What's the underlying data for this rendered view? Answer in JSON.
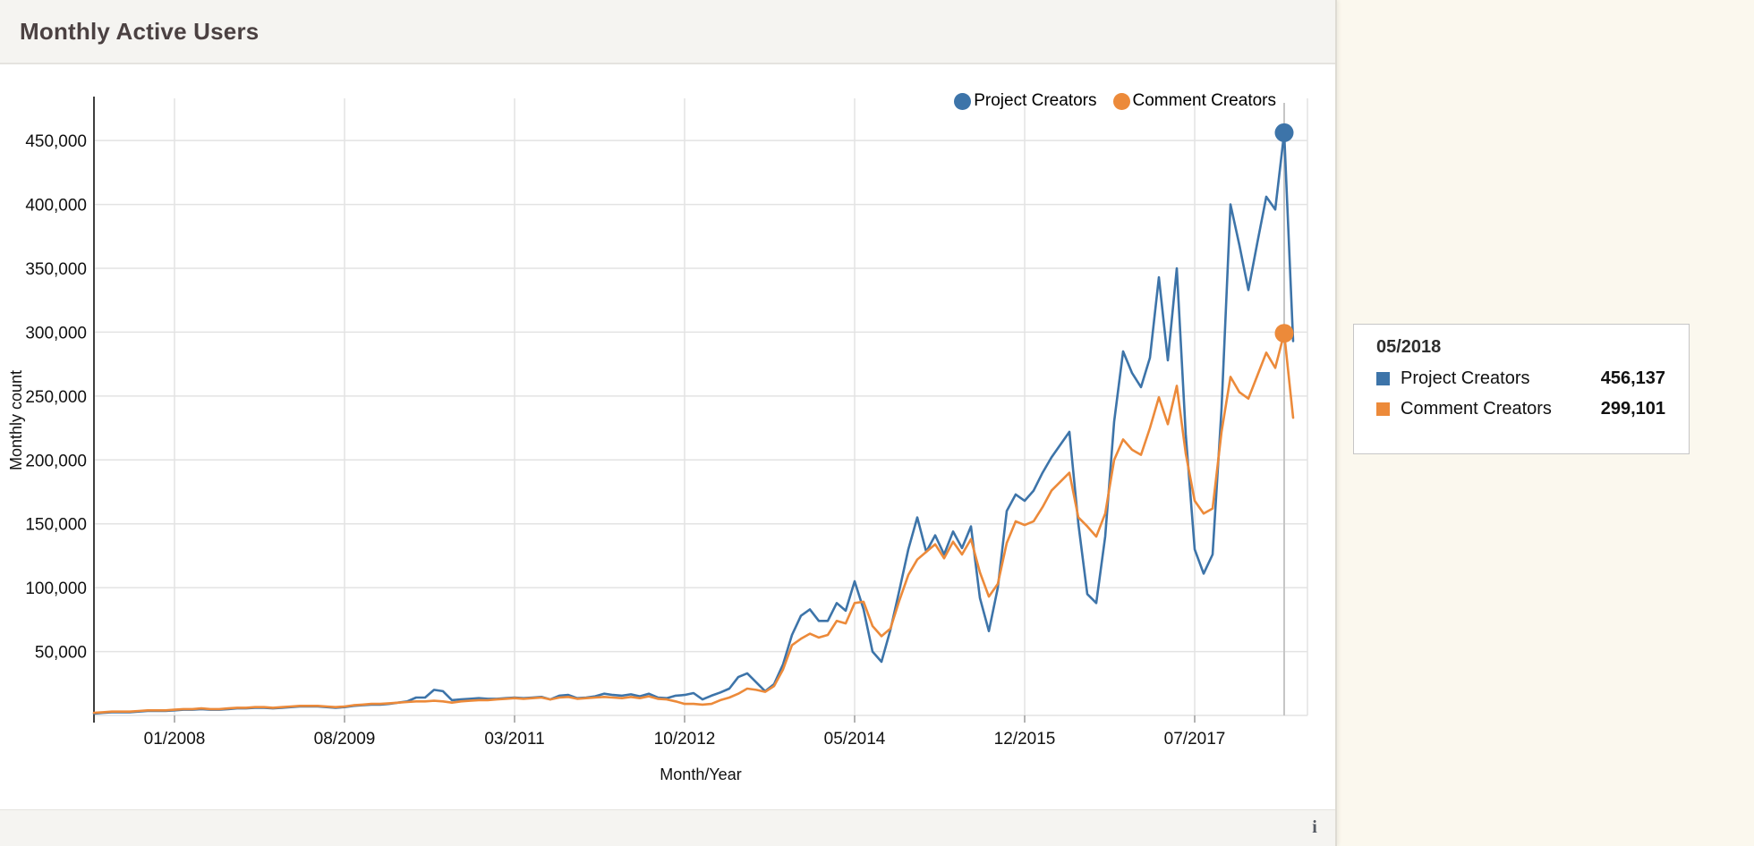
{
  "header": {
    "title": "Monthly Active Users"
  },
  "legend": {
    "items": [
      {
        "label": "Project Creators",
        "color": "#3d74a9"
      },
      {
        "label": "Comment Creators",
        "color": "#ec8a3a"
      }
    ]
  },
  "tooltip": {
    "date": "05/2018",
    "rows": [
      {
        "label": "Project Creators",
        "value": "456,137",
        "color": "#3d74a9"
      },
      {
        "label": "Comment Creators",
        "value": "299,101",
        "color": "#ec8a3a"
      }
    ]
  },
  "footer": {
    "info_icon": "i"
  },
  "chart_data": {
    "type": "line",
    "title": "Monthly Active Users",
    "xlabel": "Month/Year",
    "ylabel": "Monthly count",
    "ylim": [
      0,
      460000
    ],
    "grid": true,
    "legend_position": "top-right",
    "y_ticks": [
      {
        "value": 50000,
        "label": "50,000"
      },
      {
        "value": 100000,
        "label": "100,000"
      },
      {
        "value": 150000,
        "label": "150,000"
      },
      {
        "value": 200000,
        "label": "200,000"
      },
      {
        "value": 250000,
        "label": "250,000"
      },
      {
        "value": 300000,
        "label": "300,000"
      },
      {
        "value": 350000,
        "label": "350,000"
      },
      {
        "value": 400000,
        "label": "400,000"
      },
      {
        "value": 450000,
        "label": "450,000"
      }
    ],
    "x_tick_labels": [
      "01/2008",
      "08/2009",
      "03/2011",
      "10/2012",
      "05/2014",
      "12/2015",
      "07/2017"
    ],
    "highlight": {
      "month": "05/2018",
      "values": {
        "Project Creators": 456137,
        "Comment Creators": 299101
      },
      "line_color": "#c6c6c6"
    },
    "months": [
      "04/2007",
      "05/2007",
      "06/2007",
      "07/2007",
      "08/2007",
      "09/2007",
      "10/2007",
      "11/2007",
      "12/2007",
      "01/2008",
      "02/2008",
      "03/2008",
      "04/2008",
      "05/2008",
      "06/2008",
      "07/2008",
      "08/2008",
      "09/2008",
      "10/2008",
      "11/2008",
      "12/2008",
      "01/2009",
      "02/2009",
      "03/2009",
      "04/2009",
      "05/2009",
      "06/2009",
      "07/2009",
      "08/2009",
      "09/2009",
      "10/2009",
      "11/2009",
      "12/2009",
      "01/2010",
      "02/2010",
      "03/2010",
      "04/2010",
      "05/2010",
      "06/2010",
      "07/2010",
      "08/2010",
      "09/2010",
      "10/2010",
      "11/2010",
      "12/2010",
      "01/2011",
      "02/2011",
      "03/2011",
      "04/2011",
      "05/2011",
      "06/2011",
      "07/2011",
      "08/2011",
      "09/2011",
      "10/2011",
      "11/2011",
      "12/2011",
      "01/2012",
      "02/2012",
      "03/2012",
      "04/2012",
      "05/2012",
      "06/2012",
      "07/2012",
      "08/2012",
      "09/2012",
      "10/2012",
      "11/2012",
      "12/2012",
      "01/2013",
      "02/2013",
      "03/2013",
      "04/2013",
      "05/2013",
      "06/2013",
      "07/2013",
      "08/2013",
      "09/2013",
      "10/2013",
      "11/2013",
      "12/2013",
      "01/2014",
      "02/2014",
      "03/2014",
      "04/2014",
      "05/2014",
      "06/2014",
      "07/2014",
      "08/2014",
      "09/2014",
      "10/2014",
      "11/2014",
      "12/2014",
      "01/2015",
      "02/2015",
      "03/2015",
      "04/2015",
      "05/2015",
      "06/2015",
      "07/2015",
      "08/2015",
      "09/2015",
      "10/2015",
      "11/2015",
      "12/2015",
      "01/2016",
      "02/2016",
      "03/2016",
      "04/2016",
      "05/2016",
      "06/2016",
      "07/2016",
      "08/2016",
      "09/2016",
      "10/2016",
      "11/2016",
      "12/2016",
      "01/2017",
      "02/2017",
      "03/2017",
      "04/2017",
      "05/2017",
      "06/2017",
      "07/2017",
      "08/2017",
      "09/2017",
      "10/2017",
      "11/2017",
      "12/2017",
      "01/2018",
      "02/2018",
      "03/2018",
      "04/2018",
      "05/2018",
      "06/2018"
    ],
    "series": [
      {
        "name": "Project Creators",
        "color": "#3d74a9",
        "values": [
          1500,
          2000,
          2500,
          2500,
          2500,
          3000,
          3500,
          3500,
          3500,
          4000,
          4500,
          4500,
          5000,
          4500,
          4500,
          5000,
          5500,
          5500,
          6000,
          6000,
          5500,
          6000,
          6500,
          7000,
          7000,
          7000,
          6500,
          6000,
          6500,
          7500,
          8000,
          8500,
          8500,
          9000,
          10000,
          11000,
          14000,
          14000,
          20000,
          19000,
          12000,
          12500,
          13000,
          13500,
          13000,
          13000,
          13500,
          14000,
          13500,
          14000,
          14500,
          12500,
          15500,
          16000,
          13500,
          14000,
          15000,
          17000,
          16000,
          15500,
          16500,
          15000,
          17000,
          14000,
          13500,
          15500,
          16000,
          17500,
          12500,
          15500,
          18000,
          21000,
          30000,
          33000,
          26000,
          19000,
          24500,
          40000,
          63000,
          78000,
          83000,
          74000,
          74000,
          88000,
          82000,
          105000,
          83000,
          50000,
          42000,
          67000,
          98000,
          130000,
          155000,
          128000,
          141000,
          126000,
          144000,
          131000,
          148000,
          92000,
          66000,
          100000,
          160000,
          173000,
          168000,
          176000,
          190000,
          202000,
          212000,
          222000,
          150000,
          95000,
          88000,
          140000,
          230000,
          285000,
          268000,
          257000,
          280000,
          343000,
          278000,
          350000,
          220000,
          130000,
          111000,
          126000,
          240000,
          400000,
          368000,
          333000,
          370000,
          406000,
          396000,
          456137,
          293000
        ]
      },
      {
        "name": "Comment Creators",
        "color": "#ec8a3a",
        "values": [
          2000,
          2500,
          3000,
          3000,
          3000,
          3500,
          4000,
          4000,
          4000,
          4500,
          5000,
          5000,
          5500,
          5000,
          5000,
          5500,
          6000,
          6000,
          6500,
          6500,
          6000,
          6500,
          7000,
          7500,
          7500,
          7500,
          7000,
          6500,
          7000,
          8000,
          8500,
          9000,
          9000,
          9500,
          10000,
          10500,
          11000,
          11000,
          11500,
          11000,
          10000,
          11000,
          11500,
          12000,
          12000,
          12500,
          13000,
          13500,
          13000,
          13500,
          14000,
          12500,
          14000,
          14500,
          13000,
          13500,
          14000,
          14500,
          14000,
          13500,
          14500,
          13500,
          15000,
          13000,
          12500,
          11000,
          9000,
          9000,
          8500,
          9000,
          12000,
          14000,
          17000,
          21000,
          20000,
          18500,
          23000,
          36000,
          55000,
          60000,
          64000,
          61000,
          63000,
          74000,
          72000,
          88000,
          89000,
          70000,
          62000,
          68000,
          90000,
          110000,
          122000,
          128000,
          134000,
          123000,
          136000,
          126000,
          138000,
          112000,
          93000,
          103000,
          135000,
          152000,
          149000,
          152000,
          163000,
          176000,
          183000,
          190000,
          155000,
          148000,
          140000,
          158000,
          200000,
          216000,
          208000,
          204000,
          225000,
          249000,
          228000,
          258000,
          205000,
          168000,
          158000,
          162000,
          222000,
          265000,
          253000,
          248000,
          266000,
          284000,
          272000,
          299101,
          233000
        ]
      }
    ]
  }
}
